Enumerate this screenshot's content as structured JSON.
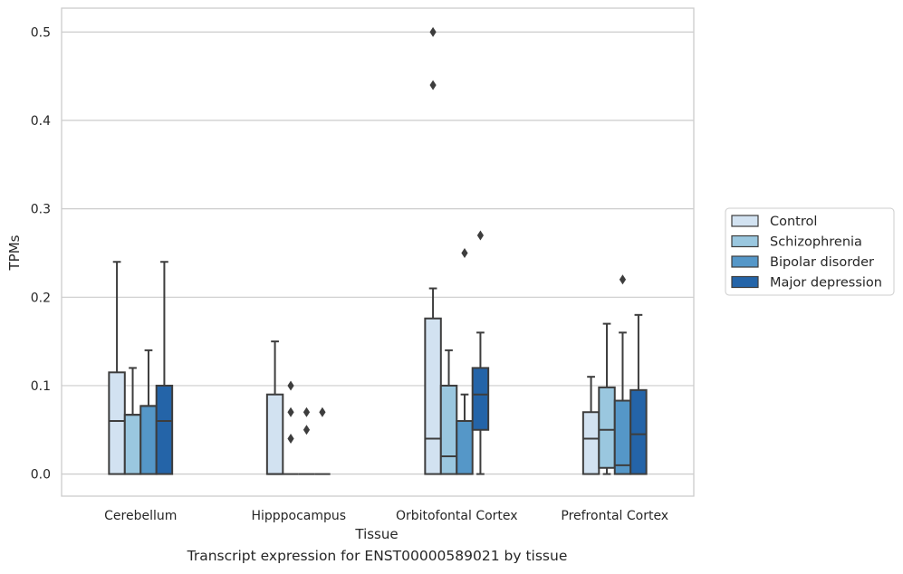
{
  "chart_data": {
    "type": "box",
    "xlabel": "Tissue",
    "ylabel": "TPMs",
    "caption": "Transcript expression for ENST00000589021 by tissue",
    "ylim": [
      -0.025,
      0.527
    ],
    "yticks": [
      "0.0",
      "0.1",
      "0.2",
      "0.3",
      "0.4",
      "0.5"
    ],
    "grid": true,
    "legend_position": "right",
    "categories": [
      "Cerebellum",
      "Hipppocampus",
      "Orbitofontal Cortex",
      "Prefrontal Cortex"
    ],
    "series": [
      {
        "name": "Control",
        "color": "#d2e2f1",
        "boxes": [
          {
            "q1": 0.0,
            "median": 0.06,
            "q3": 0.115,
            "whisker_low": 0.0,
            "whisker_high": 0.24,
            "outliers": []
          },
          {
            "q1": 0.0,
            "median": 0.0,
            "q3": 0.09,
            "whisker_low": 0.0,
            "whisker_high": 0.15,
            "outliers": []
          },
          {
            "q1": 0.0,
            "median": 0.04,
            "q3": 0.176,
            "whisker_low": 0.0,
            "whisker_high": 0.21,
            "outliers": [
              0.44,
              0.5
            ]
          },
          {
            "q1": 0.0,
            "median": 0.04,
            "q3": 0.07,
            "whisker_low": 0.0,
            "whisker_high": 0.11,
            "outliers": []
          }
        ]
      },
      {
        "name": "Schizophrenia",
        "color": "#9ac7df",
        "boxes": [
          {
            "q1": 0.0,
            "median": 0.067,
            "q3": 0.067,
            "whisker_low": 0.0,
            "whisker_high": 0.12,
            "outliers": []
          },
          {
            "q1": 0.0,
            "median": 0.0,
            "q3": 0.0,
            "whisker_low": 0.0,
            "whisker_high": 0.0,
            "outliers": [
              0.04,
              0.07,
              0.1
            ]
          },
          {
            "q1": 0.0,
            "median": 0.02,
            "q3": 0.1,
            "whisker_low": 0.0,
            "whisker_high": 0.14,
            "outliers": []
          },
          {
            "q1": 0.007,
            "median": 0.05,
            "q3": 0.098,
            "whisker_low": 0.0,
            "whisker_high": 0.17,
            "outliers": []
          }
        ]
      },
      {
        "name": "Bipolar disorder",
        "color": "#5597c8",
        "boxes": [
          {
            "q1": 0.0,
            "median": 0.077,
            "q3": 0.077,
            "whisker_low": 0.0,
            "whisker_high": 0.14,
            "outliers": []
          },
          {
            "q1": 0.0,
            "median": 0.0,
            "q3": 0.0,
            "whisker_low": 0.0,
            "whisker_high": 0.0,
            "outliers": [
              0.05,
              0.07
            ]
          },
          {
            "q1": 0.0,
            "median": 0.06,
            "q3": 0.06,
            "whisker_low": 0.0,
            "whisker_high": 0.09,
            "outliers": [
              0.25
            ]
          },
          {
            "q1": 0.0,
            "median": 0.01,
            "q3": 0.083,
            "whisker_low": 0.0,
            "whisker_high": 0.16,
            "outliers": [
              0.22
            ]
          }
        ]
      },
      {
        "name": "Major depression",
        "color": "#2464a8",
        "boxes": [
          {
            "q1": 0.0,
            "median": 0.06,
            "q3": 0.1,
            "whisker_low": 0.0,
            "whisker_high": 0.24,
            "outliers": []
          },
          {
            "q1": 0.0,
            "median": 0.0,
            "q3": 0.0,
            "whisker_low": 0.0,
            "whisker_high": 0.0,
            "outliers": [
              0.07
            ]
          },
          {
            "q1": 0.05,
            "median": 0.09,
            "q3": 0.12,
            "whisker_low": 0.0,
            "whisker_high": 0.16,
            "outliers": [
              0.27
            ]
          },
          {
            "q1": 0.0,
            "median": 0.045,
            "q3": 0.095,
            "whisker_low": 0.0,
            "whisker_high": 0.18,
            "outliers": []
          }
        ]
      }
    ]
  }
}
